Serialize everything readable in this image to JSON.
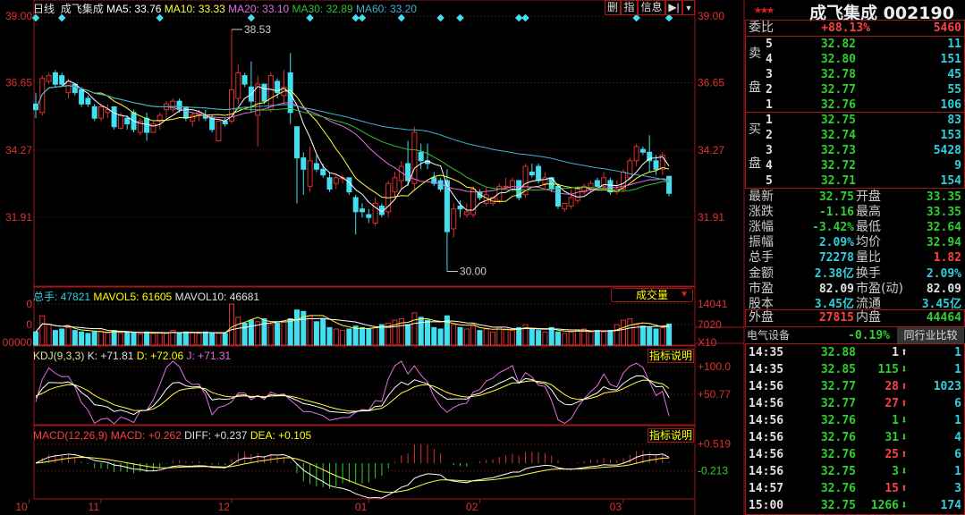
{
  "legend": {
    "period": "日线",
    "name": "成飞集成",
    "ma5": "MA5: 33.76",
    "ma10": "MA10: 33.33",
    "ma20": "MA20: 33.10",
    "ma30": "MA30: 32.89",
    "ma60": "MA60: 33.20"
  },
  "toolbar": {
    "delete": "删",
    "indicator": "指",
    "info": "信息"
  },
  "volume_header": {
    "total": "总手: 47821",
    "mavol5": "MAVOL5: 61605",
    "mavol10": "MAVOL10: 46681",
    "dropdown": "成交量"
  },
  "kdj_header": {
    "title": "KDJ(9,3,3)",
    "k": "K: +71.81",
    "d": "D: +72.06",
    "j": "J: +71.31",
    "help": "指标说明"
  },
  "macd_header": {
    "title": "MACD(12,26,9)",
    "macd": "MACD: +0.262",
    "diff": "DIFF: +0.237",
    "dea": "DEA: +0.105",
    "help": "指标说明"
  },
  "colors": {
    "up": "#e03030",
    "down": "#40e0f0",
    "ma5": "#ffffff",
    "ma10": "#ffff40",
    "ma20": "#e070e0",
    "ma30": "#30c030",
    "ma60": "#40b0d0"
  },
  "chart_data": {
    "type": "candlestick",
    "ylim": [
      30.0,
      39.0
    ],
    "price_labels": [
      "39.00",
      "36.65",
      "34.27",
      "31.91"
    ],
    "volume_labels": [
      "14041",
      "7020",
      "X10"
    ],
    "volume_left_labels": [
      "0",
      "0",
      "00000"
    ],
    "kdj_labels": [
      "+100.0",
      "+50.77"
    ],
    "macd_labels": [
      "+0.519",
      "-0.213"
    ],
    "annotations": [
      {
        "index": 30,
        "text": "38.53"
      },
      {
        "index": 63,
        "text": "30.00"
      }
    ],
    "months": [
      {
        "index": -1,
        "label": "10"
      },
      {
        "index": 10,
        "label": "11"
      },
      {
        "index": 30,
        "label": "12"
      },
      {
        "index": 51,
        "label": "01"
      },
      {
        "index": 68,
        "label": "02"
      },
      {
        "index": 90,
        "label": "03"
      }
    ],
    "info_markers": [
      0,
      4,
      19,
      33,
      42,
      49,
      50,
      56,
      62,
      65,
      74,
      75,
      92,
      97
    ],
    "ohlc": [
      [
        35.9,
        36.3,
        35.4,
        35.7
      ],
      [
        35.6,
        36.9,
        35.5,
        36.8
      ],
      [
        36.7,
        37.0,
        36.6,
        36.9
      ],
      [
        37.0,
        37.1,
        36.5,
        36.6
      ],
      [
        36.9,
        37.0,
        36.5,
        36.6
      ],
      [
        36.3,
        36.8,
        36.1,
        36.7
      ],
      [
        36.6,
        36.6,
        36.2,
        36.3
      ],
      [
        36.4,
        36.5,
        35.8,
        35.9
      ],
      [
        36.1,
        36.2,
        35.8,
        35.9
      ],
      [
        35.8,
        35.9,
        35.3,
        35.4
      ],
      [
        35.4,
        35.9,
        35.3,
        35.8
      ],
      [
        35.6,
        35.9,
        35.4,
        35.7
      ],
      [
        35.8,
        35.8,
        35.0,
        35.1
      ],
      [
        35.05,
        35.6,
        35.0,
        35.5
      ],
      [
        35.4,
        35.5,
        35.0,
        35.2
      ],
      [
        35.6,
        35.7,
        34.9,
        35.0
      ],
      [
        34.9,
        35.4,
        34.8,
        35.3
      ],
      [
        35.4,
        35.6,
        34.6,
        34.9
      ],
      [
        34.9,
        35.3,
        34.9,
        35.2
      ],
      [
        35.3,
        35.6,
        35.0,
        35.5
      ],
      [
        35.7,
        36.0,
        35.4,
        35.9
      ],
      [
        35.7,
        36.1,
        35.6,
        36.0
      ],
      [
        36.0,
        36.1,
        35.6,
        35.7
      ],
      [
        35.8,
        35.8,
        35.3,
        35.4
      ],
      [
        35.3,
        35.6,
        35.1,
        35.5
      ],
      [
        35.5,
        35.7,
        35.3,
        35.6
      ],
      [
        35.5,
        35.7,
        35.3,
        35.4
      ],
      [
        35.4,
        35.5,
        34.9,
        35.0
      ],
      [
        34.6,
        35.3,
        34.6,
        35.3
      ],
      [
        35.3,
        35.4,
        35.1,
        35.2
      ],
      [
        35.3,
        38.53,
        35.2,
        36.4
      ],
      [
        36.1,
        37.3,
        35.9,
        37.0
      ],
      [
        36.9,
        37.0,
        36.5,
        36.6
      ],
      [
        36.5,
        37.4,
        35.6,
        36.0
      ],
      [
        35.5,
        36.9,
        34.4,
        36.6
      ],
      [
        36.6,
        36.6,
        35.9,
        36.0
      ],
      [
        35.7,
        37.0,
        35.6,
        36.9
      ],
      [
        36.7,
        36.8,
        36.1,
        36.3
      ],
      [
        36.2,
        37.1,
        35.9,
        36.5
      ],
      [
        37.0,
        37.7,
        35.2,
        35.6
      ],
      [
        35.1,
        35.1,
        32.4,
        34.0
      ],
      [
        34.0,
        34.2,
        32.7,
        33.6
      ],
      [
        33.0,
        34.4,
        32.8,
        33.9
      ],
      [
        33.8,
        34.1,
        33.5,
        33.6
      ],
      [
        33.6,
        33.8,
        33.3,
        33.4
      ],
      [
        33.3,
        33.5,
        32.8,
        32.9
      ],
      [
        33.1,
        33.4,
        32.9,
        33.3
      ],
      [
        33.3,
        33.4,
        33.1,
        33.3
      ],
      [
        33.3,
        33.3,
        32.7,
        32.8
      ],
      [
        32.6,
        32.7,
        31.3,
        32.1
      ],
      [
        32.2,
        32.4,
        31.9,
        32.1
      ],
      [
        32.0,
        32.2,
        31.7,
        31.9
      ],
      [
        31.7,
        32.6,
        31.6,
        32.4
      ],
      [
        32.3,
        32.4,
        31.9,
        32.0
      ],
      [
        32.1,
        33.2,
        31.9,
        33.1
      ],
      [
        32.8,
        33.5,
        32.6,
        33.3
      ],
      [
        33.2,
        33.9,
        32.9,
        33.7
      ],
      [
        33.8,
        34.6,
        33.0,
        33.2
      ],
      [
        33.1,
        35.1,
        32.9,
        34.9
      ],
      [
        34.2,
        34.5,
        33.6,
        33.9
      ],
      [
        33.9,
        34.5,
        33.6,
        33.8
      ],
      [
        33.3,
        33.5,
        33.0,
        33.1
      ],
      [
        33.2,
        33.3,
        32.8,
        32.9
      ],
      [
        33.2,
        33.6,
        30.0,
        31.4
      ],
      [
        31.5,
        32.4,
        31.2,
        32.2
      ],
      [
        32.3,
        32.5,
        31.9,
        32.2
      ],
      [
        32.0,
        32.4,
        31.9,
        32.1
      ],
      [
        32.0,
        33.0,
        31.9,
        32.9
      ],
      [
        32.8,
        32.9,
        32.5,
        32.6
      ],
      [
        32.4,
        33.0,
        32.3,
        32.7
      ],
      [
        32.4,
        32.6,
        32.3,
        32.6
      ],
      [
        32.5,
        33.1,
        32.4,
        33.0
      ],
      [
        33.0,
        33.3,
        32.9,
        33.0
      ],
      [
        32.9,
        33.3,
        32.8,
        33.2
      ],
      [
        33.2,
        33.2,
        32.5,
        32.6
      ],
      [
        32.7,
        33.8,
        32.6,
        33.7
      ],
      [
        33.5,
        33.8,
        33.3,
        33.4
      ],
      [
        33.7,
        33.8,
        33.1,
        33.2
      ],
      [
        33.1,
        33.5,
        32.9,
        33.3
      ],
      [
        33.3,
        33.3,
        32.8,
        32.9
      ],
      [
        33.0,
        33.1,
        32.2,
        32.3
      ],
      [
        32.2,
        32.4,
        32.1,
        32.4
      ],
      [
        32.3,
        32.9,
        32.2,
        32.6
      ],
      [
        32.5,
        33.0,
        32.4,
        32.9
      ],
      [
        32.8,
        33.1,
        32.7,
        33.0
      ],
      [
        32.9,
        33.2,
        32.8,
        33.1
      ],
      [
        33.2,
        33.3,
        32.9,
        33.0
      ],
      [
        33.0,
        33.5,
        32.9,
        33.3
      ],
      [
        33.2,
        33.3,
        32.7,
        32.8
      ],
      [
        32.8,
        33.2,
        32.7,
        32.9
      ],
      [
        32.9,
        33.6,
        32.8,
        33.5
      ],
      [
        33.3,
        34.0,
        33.2,
        33.9
      ],
      [
        33.9,
        34.5,
        33.7,
        34.4
      ],
      [
        34.3,
        34.4,
        34.1,
        34.2
      ],
      [
        34.2,
        34.8,
        33.5,
        33.9
      ],
      [
        33.9,
        34.1,
        33.4,
        33.6
      ],
      [
        33.6,
        34.2,
        33.4,
        34.1
      ],
      [
        33.35,
        33.35,
        32.64,
        32.75
      ]
    ],
    "volume": [
      45000,
      100000,
      70000,
      50000,
      55000,
      60000,
      50000,
      45000,
      40000,
      45000,
      48000,
      42000,
      50000,
      40000,
      45000,
      42000,
      38000,
      45000,
      40000,
      42000,
      40000,
      50000,
      42000,
      45000,
      42000,
      40000,
      45000,
      42000,
      40000,
      40000,
      140000,
      95000,
      75000,
      85000,
      80000,
      90000,
      70000,
      75000,
      80000,
      90000,
      120000,
      115000,
      100000,
      80000,
      90000,
      60000,
      55000,
      50000,
      55000,
      65000,
      60000,
      55000,
      60000,
      70000,
      75000,
      85000,
      90000,
      70000,
      110000,
      95000,
      85000,
      60000,
      55000,
      100000,
      70000,
      60000,
      55000,
      65000,
      50000,
      55000,
      45000,
      60000,
      55000,
      50000,
      60000,
      70000,
      55000,
      50000,
      45000,
      60000,
      45000,
      40000,
      45000,
      50000,
      55000,
      45000,
      50000,
      45000,
      50000,
      70000,
      85000,
      90000,
      70000,
      65000,
      60000,
      55000,
      60000,
      72278
    ]
  },
  "quote": {
    "stars": "★★★",
    "title": "成飞集成 002190",
    "ratio_label": "委比",
    "ratio_pct": "+88.13%",
    "ratio_diff": "5460",
    "sell_label": [
      "卖",
      "盘"
    ],
    "buy_label": [
      "买",
      "盘"
    ],
    "sell": [
      {
        "lvl": "5",
        "price": "32.82",
        "vol": "11"
      },
      {
        "lvl": "4",
        "price": "32.80",
        "vol": "151"
      },
      {
        "lvl": "3",
        "price": "32.78",
        "vol": "45"
      },
      {
        "lvl": "2",
        "price": "32.77",
        "vol": "55"
      },
      {
        "lvl": "1",
        "price": "32.76",
        "vol": "106"
      }
    ],
    "buy": [
      {
        "lvl": "1",
        "price": "32.75",
        "vol": "83"
      },
      {
        "lvl": "2",
        "price": "32.74",
        "vol": "153"
      },
      {
        "lvl": "3",
        "price": "32.73",
        "vol": "5428"
      },
      {
        "lvl": "4",
        "price": "32.72",
        "vol": "9"
      },
      {
        "lvl": "5",
        "price": "32.71",
        "vol": "154"
      }
    ],
    "stats": [
      {
        "l1": "最新",
        "v1": "32.75",
        "c1": "g",
        "l2": "开盘",
        "v2": "33.35",
        "c2": "g"
      },
      {
        "l1": "涨跌",
        "v1": "-1.16",
        "c1": "g",
        "l2": "最高",
        "v2": "33.35",
        "c2": "g"
      },
      {
        "l1": "涨幅",
        "v1": "-3.42%",
        "c1": "g",
        "l2": "最低",
        "v2": "32.64",
        "c2": "g"
      },
      {
        "l1": "振幅",
        "v1": "2.09%",
        "c1": "c",
        "l2": "均价",
        "v2": "32.94",
        "c2": "g"
      },
      {
        "l1": "总手",
        "v1": "72278",
        "c1": "c",
        "l2": "量比",
        "v2": "1.82",
        "c2": "r"
      },
      {
        "l1": "金额",
        "v1": "2.38亿",
        "c1": "c",
        "l2": "换手",
        "v2": "2.09%",
        "c2": "c"
      },
      {
        "l1": "市盈",
        "v1": "82.09",
        "c1": "w",
        "l2": "市盈(动)",
        "v2": "82.09",
        "c2": "w"
      },
      {
        "l1": "股本",
        "v1": "3.45亿",
        "c1": "c",
        "l2": "流通",
        "v2": "3.45亿",
        "c2": "c"
      }
    ],
    "outer": {
      "l1": "外盘",
      "v1": "27815",
      "l2": "内盘",
      "v2": "44464"
    },
    "industry": {
      "name": "电气设备",
      "pct": "-0.19%",
      "compare": "同行业比较"
    },
    "ticks": [
      {
        "time": "14:35",
        "price": "32.88",
        "vol": "1",
        "dir": "up",
        "col": "w",
        "n": "1"
      },
      {
        "time": "14:35",
        "price": "32.85",
        "vol": "115",
        "dir": "down",
        "col": "g",
        "n": "1"
      },
      {
        "time": "14:56",
        "price": "32.77",
        "vol": "28",
        "dir": "up",
        "col": "r",
        "n": "1023"
      },
      {
        "time": "14:56",
        "price": "32.77",
        "vol": "27",
        "dir": "up",
        "col": "r",
        "n": "6"
      },
      {
        "time": "14:56",
        "price": "32.76",
        "vol": "1",
        "dir": "down",
        "col": "g",
        "n": "1"
      },
      {
        "time": "14:56",
        "price": "32.76",
        "vol": "31",
        "dir": "down",
        "col": "g",
        "n": "4"
      },
      {
        "time": "14:56",
        "price": "32.76",
        "vol": "25",
        "dir": "up",
        "col": "r",
        "n": "6"
      },
      {
        "time": "14:56",
        "price": "32.75",
        "vol": "3",
        "dir": "down",
        "col": "g",
        "n": "1"
      },
      {
        "time": "14:57",
        "price": "32.76",
        "vol": "15",
        "dir": "up",
        "col": "r",
        "n": "3"
      },
      {
        "time": "15:00",
        "price": "32.75",
        "vol": "1266",
        "dir": "down",
        "col": "g",
        "n": "174"
      }
    ]
  }
}
